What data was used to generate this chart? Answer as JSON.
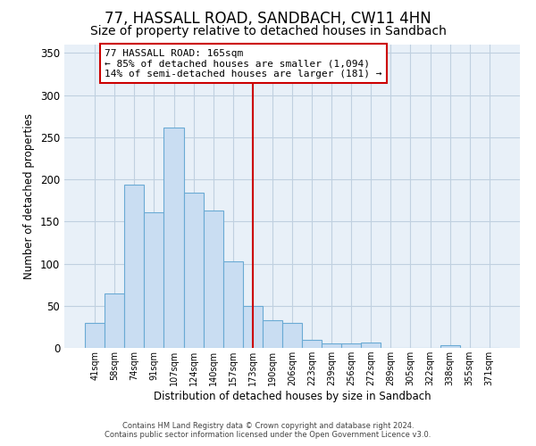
{
  "title": "77, HASSALL ROAD, SANDBACH, CW11 4HN",
  "subtitle": "Size of property relative to detached houses in Sandbach",
  "xlabel": "Distribution of detached houses by size in Sandbach",
  "ylabel": "Number of detached properties",
  "bar_labels": [
    "41sqm",
    "58sqm",
    "74sqm",
    "91sqm",
    "107sqm",
    "124sqm",
    "140sqm",
    "157sqm",
    "173sqm",
    "190sqm",
    "206sqm",
    "223sqm",
    "239sqm",
    "256sqm",
    "272sqm",
    "289sqm",
    "305sqm",
    "322sqm",
    "338sqm",
    "355sqm",
    "371sqm"
  ],
  "bar_values": [
    30,
    65,
    194,
    161,
    261,
    184,
    163,
    103,
    50,
    33,
    30,
    10,
    5,
    5,
    6,
    0,
    0,
    0,
    3,
    0,
    0
  ],
  "bar_color": "#c9ddf2",
  "bar_edge_color": "#6aaad4",
  "ylim": [
    0,
    360
  ],
  "yticks": [
    0,
    50,
    100,
    150,
    200,
    250,
    300,
    350
  ],
  "property_line_color": "#cc0000",
  "annotation_title": "77 HASSALL ROAD: 165sqm",
  "annotation_line1": "← 85% of detached houses are smaller (1,094)",
  "annotation_line2": "14% of semi-detached houses are larger (181) →",
  "annotation_box_color": "#ffffff",
  "annotation_box_edge": "#cc0000",
  "footer_line1": "Contains HM Land Registry data © Crown copyright and database right 2024.",
  "footer_line2": "Contains public sector information licensed under the Open Government Licence v3.0.",
  "bg_color": "#ffffff",
  "plot_bg_color": "#e8f0f8",
  "grid_color": "#c0d0e0",
  "title_fontsize": 12,
  "subtitle_fontsize": 10
}
